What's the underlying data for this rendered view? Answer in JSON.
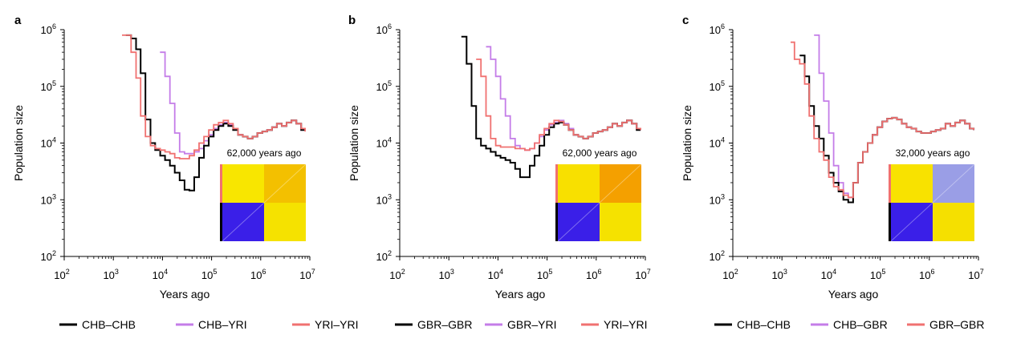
{
  "chart_data": [
    {
      "panel_label": "a",
      "type": "line",
      "xlabel": "Years ago",
      "ylabel": "Population size",
      "xscale": "log",
      "yscale": "log",
      "xlim": [
        100,
        10000000
      ],
      "ylim": [
        100,
        1000000
      ],
      "xticks": [
        {
          "base": "10",
          "exp": "2"
        },
        {
          "base": "10",
          "exp": "3"
        },
        {
          "base": "10",
          "exp": "4"
        },
        {
          "base": "10",
          "exp": "5"
        },
        {
          "base": "10",
          "exp": "6"
        },
        {
          "base": "10",
          "exp": "7"
        }
      ],
      "yticks": [
        {
          "base": "10",
          "exp": "2"
        },
        {
          "base": "10",
          "exp": "3"
        },
        {
          "base": "10",
          "exp": "4"
        },
        {
          "base": "10",
          "exp": "5"
        },
        {
          "base": "10",
          "exp": "6"
        }
      ],
      "annotation": "62,000 years ago",
      "legend_placement": "bottom",
      "series": [
        {
          "name": "CHB–CHB",
          "color": "#000000",
          "x": [
            1800,
            2300,
            2900,
            3600,
            4500,
            5700,
            7100,
            9000,
            11300,
            14200,
            17800,
            22400,
            28100,
            35300,
            44300,
            55700,
            69900,
            87800,
            110300,
            138500,
            174000,
            218500,
            274400,
            344600,
            432800,
            543600,
            682700,
            857500,
            1077000,
            1352600,
            1698800,
            2133500,
            2679500,
            3365300,
            4226600,
            5308400,
            6667100,
            8000000
          ],
          "y": [
            800000,
            700000,
            450000,
            170000,
            26000,
            10000,
            7500,
            6000,
            5000,
            4000,
            3000,
            2200,
            1500,
            1450,
            2500,
            5500,
            9000,
            13000,
            17000,
            20000,
            22000,
            20000,
            17000,
            14000,
            13000,
            12000,
            13000,
            15000,
            16000,
            17000,
            19000,
            22000,
            20000,
            23000,
            25000,
            22000,
            17000,
            17000
          ]
        },
        {
          "name": "CHB–YRI",
          "color": "#c47de8",
          "x": [
            8900,
            11300,
            14200,
            17800,
            22400,
            28100,
            35300,
            44300,
            55700,
            69900,
            87800,
            110300,
            138500,
            174000,
            218500,
            274400,
            344600,
            432800,
            543600,
            682700,
            857500,
            1077000,
            1352600,
            1698800,
            2133500,
            2679500,
            3365300,
            4226600,
            5308400,
            6667100,
            8000000
          ],
          "y": [
            400000,
            150000,
            50000,
            15000,
            7000,
            6500,
            6500,
            7000,
            8000,
            11000,
            14000,
            18000,
            21000,
            23000,
            21000,
            18000,
            14000,
            13000,
            12000,
            13000,
            15000,
            16000,
            17000,
            19000,
            22000,
            20000,
            23000,
            25000,
            22000,
            17000,
            17000
          ]
        },
        {
          "name": "YRI–YRI",
          "color": "#f07170",
          "x": [
            1500,
            1800,
            2300,
            2900,
            3600,
            4500,
            5700,
            7100,
            9000,
            11300,
            14200,
            17800,
            22400,
            28100,
            35300,
            44300,
            55700,
            69900,
            87800,
            110300,
            138500,
            174000,
            218500,
            274400,
            344600,
            432800,
            543600,
            682700,
            857500,
            1077000,
            1352600,
            1698800,
            2133500,
            2679500,
            3365300,
            4226600,
            5308400,
            6667100,
            8000000
          ],
          "y": [
            800000,
            800000,
            400000,
            140000,
            30000,
            13000,
            9000,
            8000,
            7500,
            7000,
            6500,
            5500,
            5300,
            5300,
            6000,
            7500,
            10000,
            13000,
            17000,
            21000,
            23000,
            25000,
            22000,
            18000,
            14000,
            13000,
            12000,
            13000,
            15000,
            16000,
            17000,
            19000,
            22000,
            20000,
            23000,
            25000,
            22000,
            18000,
            16000
          ]
        }
      ],
      "matrix": {
        "top_left": "#f8e600",
        "top_right": "#f3c000",
        "bottom_left": "#3a1fe8",
        "bottom_right": "#f5e200",
        "left_top_bar": "#f07170",
        "left_bottom_bar": "#000000"
      }
    },
    {
      "panel_label": "b",
      "type": "line",
      "xlabel": "Years ago",
      "ylabel": "Population size",
      "xscale": "log",
      "yscale": "log",
      "xlim": [
        100,
        10000000
      ],
      "ylim": [
        100,
        1000000
      ],
      "xticks": [
        {
          "base": "10",
          "exp": "2"
        },
        {
          "base": "10",
          "exp": "3"
        },
        {
          "base": "10",
          "exp": "4"
        },
        {
          "base": "10",
          "exp": "5"
        },
        {
          "base": "10",
          "exp": "6"
        },
        {
          "base": "10",
          "exp": "7"
        }
      ],
      "yticks": [
        {
          "base": "10",
          "exp": "2"
        },
        {
          "base": "10",
          "exp": "3"
        },
        {
          "base": "10",
          "exp": "4"
        },
        {
          "base": "10",
          "exp": "5"
        },
        {
          "base": "10",
          "exp": "6"
        }
      ],
      "annotation": "62,000 years ago",
      "legend_placement": "bottom",
      "series": [
        {
          "name": "GBR–GBR",
          "color": "#000000",
          "x": [
            1800,
            2300,
            2900,
            3600,
            4500,
            5700,
            7100,
            9000,
            11300,
            14200,
            17800,
            22400,
            28100,
            35300,
            44300,
            55700,
            69900,
            87800,
            110300,
            138500,
            174000,
            218500,
            274400,
            344600,
            432800,
            543600,
            682700,
            857500,
            1077000,
            1352600,
            1698800,
            2133500,
            2679500,
            3365300,
            4226600,
            5308400,
            6667100,
            8000000
          ],
          "y": [
            750000,
            250000,
            45000,
            12000,
            9000,
            8000,
            7000,
            6000,
            5500,
            5000,
            4500,
            3500,
            2500,
            2500,
            4000,
            6000,
            9000,
            14000,
            19000,
            22000,
            23000,
            21000,
            17000,
            14000,
            13000,
            12000,
            13000,
            15000,
            16000,
            17000,
            19000,
            22000,
            20000,
            23000,
            25000,
            22000,
            17000,
            17000
          ]
        },
        {
          "name": "GBR–YRI",
          "color": "#c47de8",
          "x": [
            5700,
            7100,
            9000,
            11300,
            14200,
            17800,
            22400,
            28100,
            35300,
            44300,
            55700,
            69900,
            87800,
            110300,
            138500,
            174000,
            218500,
            274400,
            344600,
            432800,
            543600,
            682700,
            857500,
            1077000,
            1352600,
            1698800,
            2133500,
            2679500,
            3365300,
            4226600,
            5308400,
            6667100,
            8000000
          ],
          "y": [
            500000,
            300000,
            150000,
            60000,
            30000,
            12000,
            9000,
            8000,
            7500,
            8000,
            10000,
            13000,
            17000,
            21000,
            23000,
            25000,
            22000,
            18000,
            14000,
            13000,
            12000,
            13000,
            15000,
            16000,
            17000,
            19000,
            22000,
            20000,
            23000,
            25000,
            22000,
            18000,
            17000
          ]
        },
        {
          "name": "YRI–YRI",
          "color": "#f07170",
          "x": [
            3600,
            4500,
            5700,
            7100,
            9000,
            11300,
            14200,
            17800,
            22400,
            28100,
            35300,
            44300,
            55700,
            69900,
            87800,
            110300,
            138500,
            174000,
            218500,
            274400,
            344600,
            432800,
            543600,
            682700,
            857500,
            1077000,
            1352600,
            1698800,
            2133500,
            2679500,
            3365300,
            4226600,
            5308400,
            6667100,
            8000000
          ],
          "y": [
            300000,
            150000,
            30000,
            12000,
            9000,
            8500,
            8500,
            8500,
            8000,
            8000,
            7500,
            8000,
            10000,
            14000,
            18000,
            22000,
            25000,
            24000,
            21000,
            17000,
            14000,
            13000,
            12000,
            13000,
            15000,
            16000,
            17000,
            19000,
            22000,
            20000,
            23000,
            25000,
            22000,
            18000,
            17000
          ]
        }
      ],
      "matrix": {
        "top_left": "#f8e000",
        "top_right": "#f4a000",
        "bottom_left": "#3a1fe8",
        "bottom_right": "#f5e200",
        "left_top_bar": "#f07170",
        "left_bottom_bar": "#000000"
      }
    },
    {
      "panel_label": "c",
      "type": "line",
      "xlabel": "Years ago",
      "ylabel": "Population size",
      "xscale": "log",
      "yscale": "log",
      "xlim": [
        100,
        10000000
      ],
      "ylim": [
        100,
        1000000
      ],
      "xticks": [
        {
          "base": "10",
          "exp": "2"
        },
        {
          "base": "10",
          "exp": "3"
        },
        {
          "base": "10",
          "exp": "4"
        },
        {
          "base": "10",
          "exp": "5"
        },
        {
          "base": "10",
          "exp": "6"
        },
        {
          "base": "10",
          "exp": "7"
        }
      ],
      "yticks": [
        {
          "base": "10",
          "exp": "2"
        },
        {
          "base": "10",
          "exp": "3"
        },
        {
          "base": "10",
          "exp": "4"
        },
        {
          "base": "10",
          "exp": "5"
        },
        {
          "base": "10",
          "exp": "6"
        }
      ],
      "annotation": "32,000 years ago",
      "legend_placement": "bottom",
      "series": [
        {
          "name": "CHB–CHB",
          "color": "#000000",
          "x": [
            2300,
            2900,
            3600,
            4500,
            5700,
            7100,
            9000,
            11300,
            14200,
            17800,
            22400,
            28100,
            35300,
            44300,
            55700,
            69900,
            87800,
            110300,
            138500,
            174000,
            218500,
            274400,
            344600,
            432800,
            543600,
            682700,
            857500,
            1077000,
            1352600,
            1698800,
            2133500,
            2679500,
            3365300,
            4226600,
            5308400,
            6667100,
            8000000
          ],
          "y": [
            350000,
            150000,
            45000,
            20000,
            12000,
            6000,
            3000,
            2000,
            1400,
            1000,
            900,
            2000,
            4500,
            7000,
            10000,
            14000,
            19000,
            24000,
            27000,
            28000,
            26000,
            22000,
            19000,
            18000,
            16000,
            15000,
            15000,
            16000,
            17000,
            18000,
            22000,
            20000,
            23000,
            25000,
            22000,
            18000,
            17000
          ]
        },
        {
          "name": "CHB–GBR",
          "color": "#c47de8",
          "x": [
            4500,
            5700,
            7100,
            9000,
            11300,
            14200,
            17800,
            22400,
            28100,
            35300,
            44300,
            55700,
            69900,
            87800,
            110300,
            138500,
            174000,
            218500,
            274400,
            344600,
            432800,
            543600,
            682700,
            857500,
            1077000,
            1352600,
            1698800,
            2133500,
            2679500,
            3365300,
            4226600,
            5308400,
            6667100,
            8000000
          ],
          "y": [
            800000,
            170000,
            55000,
            15000,
            4000,
            2000,
            1300,
            1100,
            2000,
            4500,
            7000,
            10000,
            14000,
            19000,
            24000,
            27000,
            28000,
            26000,
            22000,
            19000,
            18000,
            16000,
            15000,
            15000,
            16000,
            17000,
            18000,
            22000,
            20000,
            23000,
            25000,
            22000,
            18000,
            17000
          ]
        },
        {
          "name": "GBR–GBR",
          "color": "#f07170",
          "x": [
            1500,
            1800,
            2300,
            2900,
            3600,
            4500,
            5700,
            7100,
            9000,
            11300,
            14200,
            17800,
            22400,
            28100,
            35300,
            44300,
            55700,
            69900,
            87800,
            110300,
            138500,
            174000,
            218500,
            274400,
            344600,
            432800,
            543600,
            682700,
            857500,
            1077000,
            1352600,
            1698800,
            2133500,
            2679500,
            3365300,
            4226600,
            5308400,
            6667100,
            8000000
          ],
          "y": [
            600000,
            300000,
            250000,
            110000,
            30000,
            12000,
            7000,
            5000,
            2500,
            1700,
            1500,
            1200,
            1100,
            2000,
            4500,
            7000,
            10000,
            14000,
            19000,
            24000,
            27000,
            28000,
            26000,
            22000,
            19000,
            18000,
            16000,
            15000,
            15000,
            16000,
            17000,
            18000,
            22000,
            20000,
            23000,
            25000,
            22000,
            18000,
            17000
          ]
        }
      ],
      "matrix": {
        "top_left": "#f8e200",
        "top_right": "#9a9ee6",
        "bottom_left": "#3a1fe8",
        "bottom_right": "#f5e000",
        "left_top_bar": "#f07170",
        "left_bottom_bar": "#000000"
      }
    }
  ]
}
